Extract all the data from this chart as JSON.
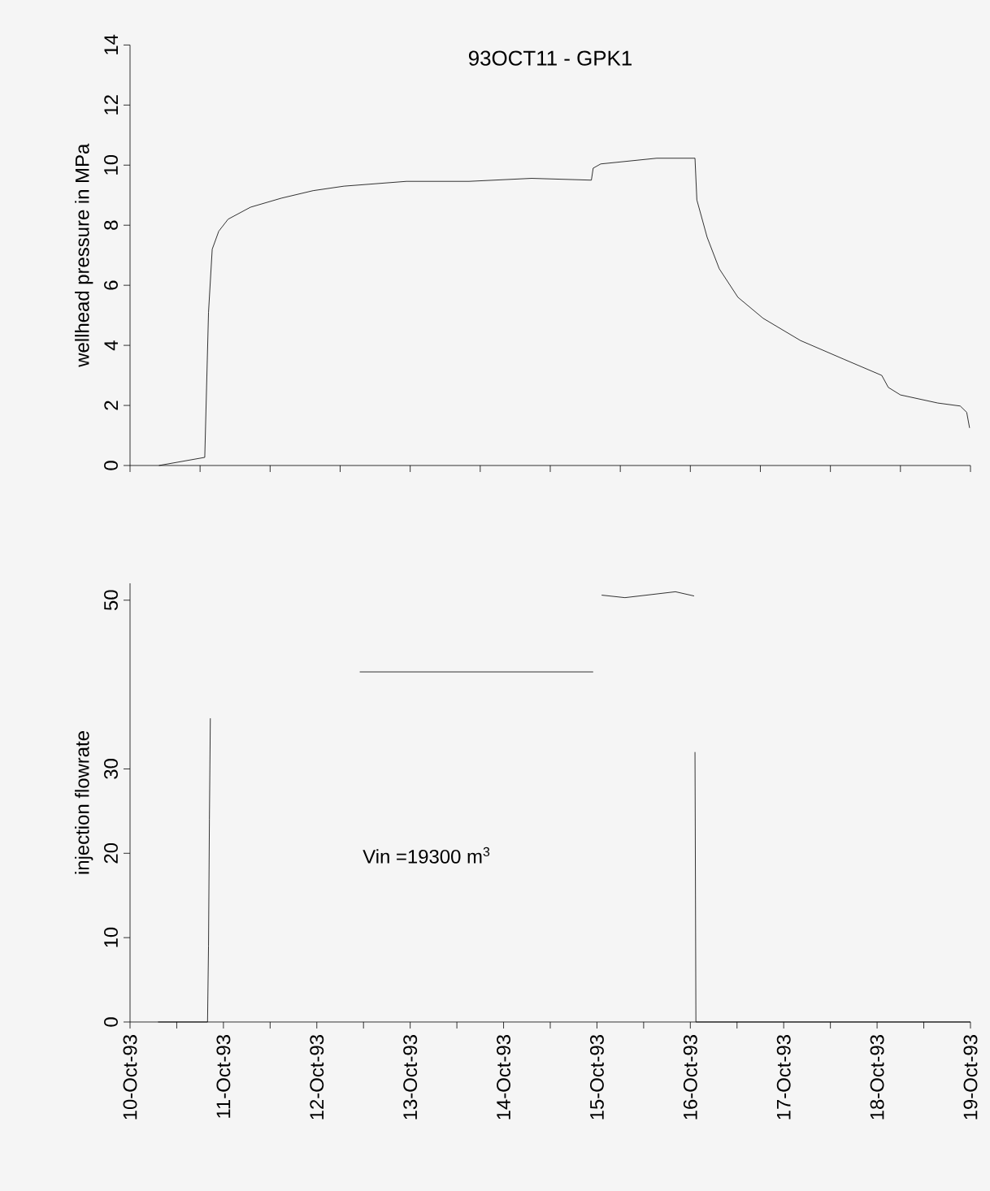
{
  "chart_data": [
    {
      "type": "line",
      "title": "93OCT11 - GPK1",
      "ylabel": "wellhead pressure in MPa",
      "xlim": [
        "1993-10-10",
        "1993-10-19"
      ],
      "ylim": [
        0,
        14
      ],
      "yticks": [
        0,
        2,
        4,
        6,
        8,
        10,
        12,
        14
      ],
      "xticks": [
        {
          "value": "1993-10-10T00:00",
          "label": null
        },
        {
          "value": "1993-10-10T18:00",
          "label": null
        },
        {
          "value": "1993-10-11T12:00",
          "label": null
        },
        {
          "value": "1993-10-12T06:00",
          "label": null
        },
        {
          "value": "1993-10-13T00:00",
          "label": null
        },
        {
          "value": "1993-10-13T18:00",
          "label": null
        },
        {
          "value": "1993-10-14T12:00",
          "label": null
        },
        {
          "value": "1993-10-15T06:00",
          "label": null
        },
        {
          "value": "1993-10-16T00:00",
          "label": null
        },
        {
          "value": "1993-10-16T18:00",
          "label": null
        },
        {
          "value": "1993-10-17T12:00",
          "label": null
        },
        {
          "value": "1993-10-18T06:00",
          "label": null
        },
        {
          "value": "1993-10-19T00:00",
          "label": null
        }
      ],
      "tick_labels": "y",
      "grid": false,
      "marker": "none",
      "line_style": "solid",
      "series": [
        {
          "color": "#000000",
          "x": [
            "1993-10-10T07:26",
            "1993-10-10T19:12",
            "1993-10-10T20:10",
            "1993-10-10T21:07",
            "1993-10-10T22:48",
            "1993-10-11T01:12",
            "1993-10-11T06:58",
            "1993-10-11T14:53",
            "1993-10-11T23:02",
            "1993-10-12T06:58",
            "1993-10-12T23:02",
            "1993-10-13T15:07",
            "1993-10-14T07:12",
            "1993-10-14T22:34",
            "1993-10-14T23:02",
            "1993-10-15T00:58",
            "1993-10-15T15:22",
            "1993-10-16T01:12",
            "1993-10-16T01:41",
            "1993-10-16T04:19",
            "1993-10-16T07:26",
            "1993-10-16T12:14",
            "1993-10-16T18:43",
            "1993-10-17T04:19",
            "1993-10-17T15:36",
            "1993-10-18T01:12",
            "1993-10-18T02:53",
            "1993-10-18T06:00",
            "1993-10-18T15:36",
            "1993-10-18T21:22",
            "1993-10-18T23:02",
            "1993-10-18T23:46"
          ],
          "values": [
            0,
            0.27,
            5.1,
            7.2,
            7.8,
            8.2,
            8.6,
            8.9,
            9.15,
            9.3,
            9.46,
            9.46,
            9.56,
            9.5,
            9.9,
            10.04,
            10.23,
            10.23,
            8.84,
            7.6,
            6.55,
            5.6,
            4.9,
            4.16,
            3.53,
            3.0,
            2.6,
            2.35,
            2.08,
            1.98,
            1.77,
            1.25
          ]
        }
      ]
    },
    {
      "type": "line",
      "ylabel": "injection flowrate",
      "xlim": [
        "1993-10-10",
        "1993-10-19"
      ],
      "ylim": [
        0,
        52
      ],
      "yticks": [
        0,
        10,
        20,
        30,
        50
      ],
      "xticks": [
        {
          "value": "1993-10-10T00:00",
          "label": "10-Oct-93"
        },
        {
          "value": "1993-10-10T12:00",
          "label": null
        },
        {
          "value": "1993-10-11T00:00",
          "label": "11-Oct-93"
        },
        {
          "value": "1993-10-11T12:00",
          "label": null
        },
        {
          "value": "1993-10-12T00:00",
          "label": "12-Oct-93"
        },
        {
          "value": "1993-10-12T12:00",
          "label": null
        },
        {
          "value": "1993-10-13T00:00",
          "label": "13-Oct-93"
        },
        {
          "value": "1993-10-13T12:00",
          "label": null
        },
        {
          "value": "1993-10-14T00:00",
          "label": "14-Oct-93"
        },
        {
          "value": "1993-10-14T12:00",
          "label": null
        },
        {
          "value": "1993-10-15T00:00",
          "label": "15-Oct-93"
        },
        {
          "value": "1993-10-15T12:00",
          "label": null
        },
        {
          "value": "1993-10-16T00:00",
          "label": "16-Oct-93"
        },
        {
          "value": "1993-10-16T12:00",
          "label": null
        },
        {
          "value": "1993-10-17T00:00",
          "label": "17-Oct-93"
        },
        {
          "value": "1993-10-17T12:00",
          "label": null
        },
        {
          "value": "1993-10-18T00:00",
          "label": "18-Oct-93"
        },
        {
          "value": "1993-10-18T12:00",
          "label": null
        },
        {
          "value": "1993-10-19T00:00",
          "label": "19-Oct-93"
        }
      ],
      "grid": false,
      "marker": "none",
      "line_style": "solid",
      "annotations": [
        "Vin =19300 m$^{3}$"
      ],
      "series": [
        {
          "color": "#000000",
          "x": [
            "1993-10-10T07:12",
            "1993-10-10T19:55",
            "1993-10-10T20:10",
            "1993-10-10T20:24",
            "1993-10-10T20:38",
            "1993-10-11T00:00",
            "1993-10-12T11:02",
            "1993-10-14T23:02",
            "1993-10-15T00:00",
            "1993-10-15T01:12",
            "1993-10-15T07:12",
            "1993-10-15T20:10",
            "1993-10-16T00:58",
            "1993-10-16T01:10",
            "1993-10-16T01:12",
            "1993-10-16T01:26",
            "1993-10-16T12:00",
            "1993-10-18T12:00",
            "1993-10-19T00:00"
          ],
          "values": [
            0,
            0,
            9,
            24,
            36,
            null,
            41.5,
            41.5,
            null,
            50.6,
            50.3,
            51.0,
            50.5,
            null,
            32,
            0,
            0,
            0,
            0
          ]
        }
      ]
    }
  ]
}
